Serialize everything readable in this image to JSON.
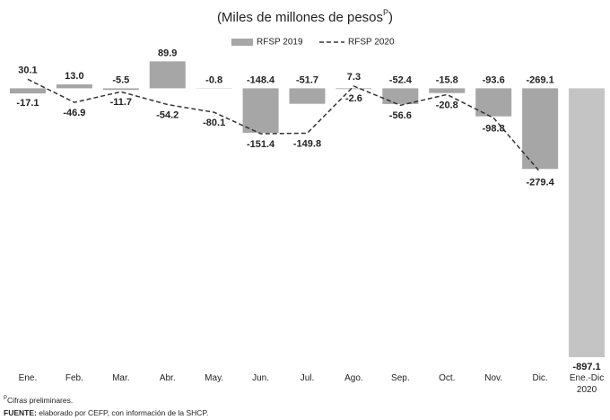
{
  "chart_data": {
    "type": "bar_line",
    "title": "(Miles de millones de pesos",
    "title_superscript": "P",
    "title_end": ")",
    "categories": [
      "Ene.",
      "Feb.",
      "Mar.",
      "Abr.",
      "May.",
      "Jun.",
      "Jul.",
      "Ago.",
      "Sep.",
      "Oct.",
      "Nov.",
      "Dic.",
      "Ene.-Dic\n2020"
    ],
    "series": [
      {
        "name": "RFSP 2019",
        "type": "bar",
        "color": "#a6a6a6",
        "colors": [
          "#a6a6a6",
          "#a6a6a6",
          "#a6a6a6",
          "#a6a6a6",
          "#a6a6a6",
          "#a6a6a6",
          "#a6a6a6",
          "#a6a6a6",
          "#a6a6a6",
          "#a6a6a6",
          "#a6a6a6",
          "#a6a6a6",
          "#c4c4c4"
        ],
        "values": [
          -17.1,
          13.0,
          -5.5,
          89.9,
          -0.8,
          -148.4,
          -51.7,
          -2.6,
          -52.4,
          -15.8,
          -93.6,
          -269.1,
          -897.1
        ],
        "value_labels": [
          "-17.1",
          "13.0",
          "-5.5",
          "89.9",
          "-0.8",
          "-148.4",
          "-51.7",
          "-2.6",
          "-52.4",
          "-15.8",
          "-93.6",
          "-269.1",
          "-897.1"
        ]
      },
      {
        "name": "RFSP 2020",
        "type": "line",
        "color": "#333333",
        "dashed": true,
        "values": [
          30.1,
          -46.9,
          -11.7,
          -54.2,
          -80.1,
          -151.4,
          -149.8,
          7.3,
          -56.6,
          -20.8,
          -98.8,
          -279.4,
          null
        ],
        "value_labels": [
          "30.1",
          "-46.9",
          "-11.7",
          "-54.2",
          "-80.1",
          "-151.4",
          "-149.8",
          "7.3",
          "-56.6",
          "-20.8",
          "-98.8",
          "-279.4",
          null
        ]
      }
    ],
    "ylim": [
      -900,
      100
    ],
    "note_marker": "P",
    "note": "Cifras preliminares.",
    "source_label": "FUENTE:",
    "source_text": "elaborado por CEFP, con información de la SHCP."
  }
}
